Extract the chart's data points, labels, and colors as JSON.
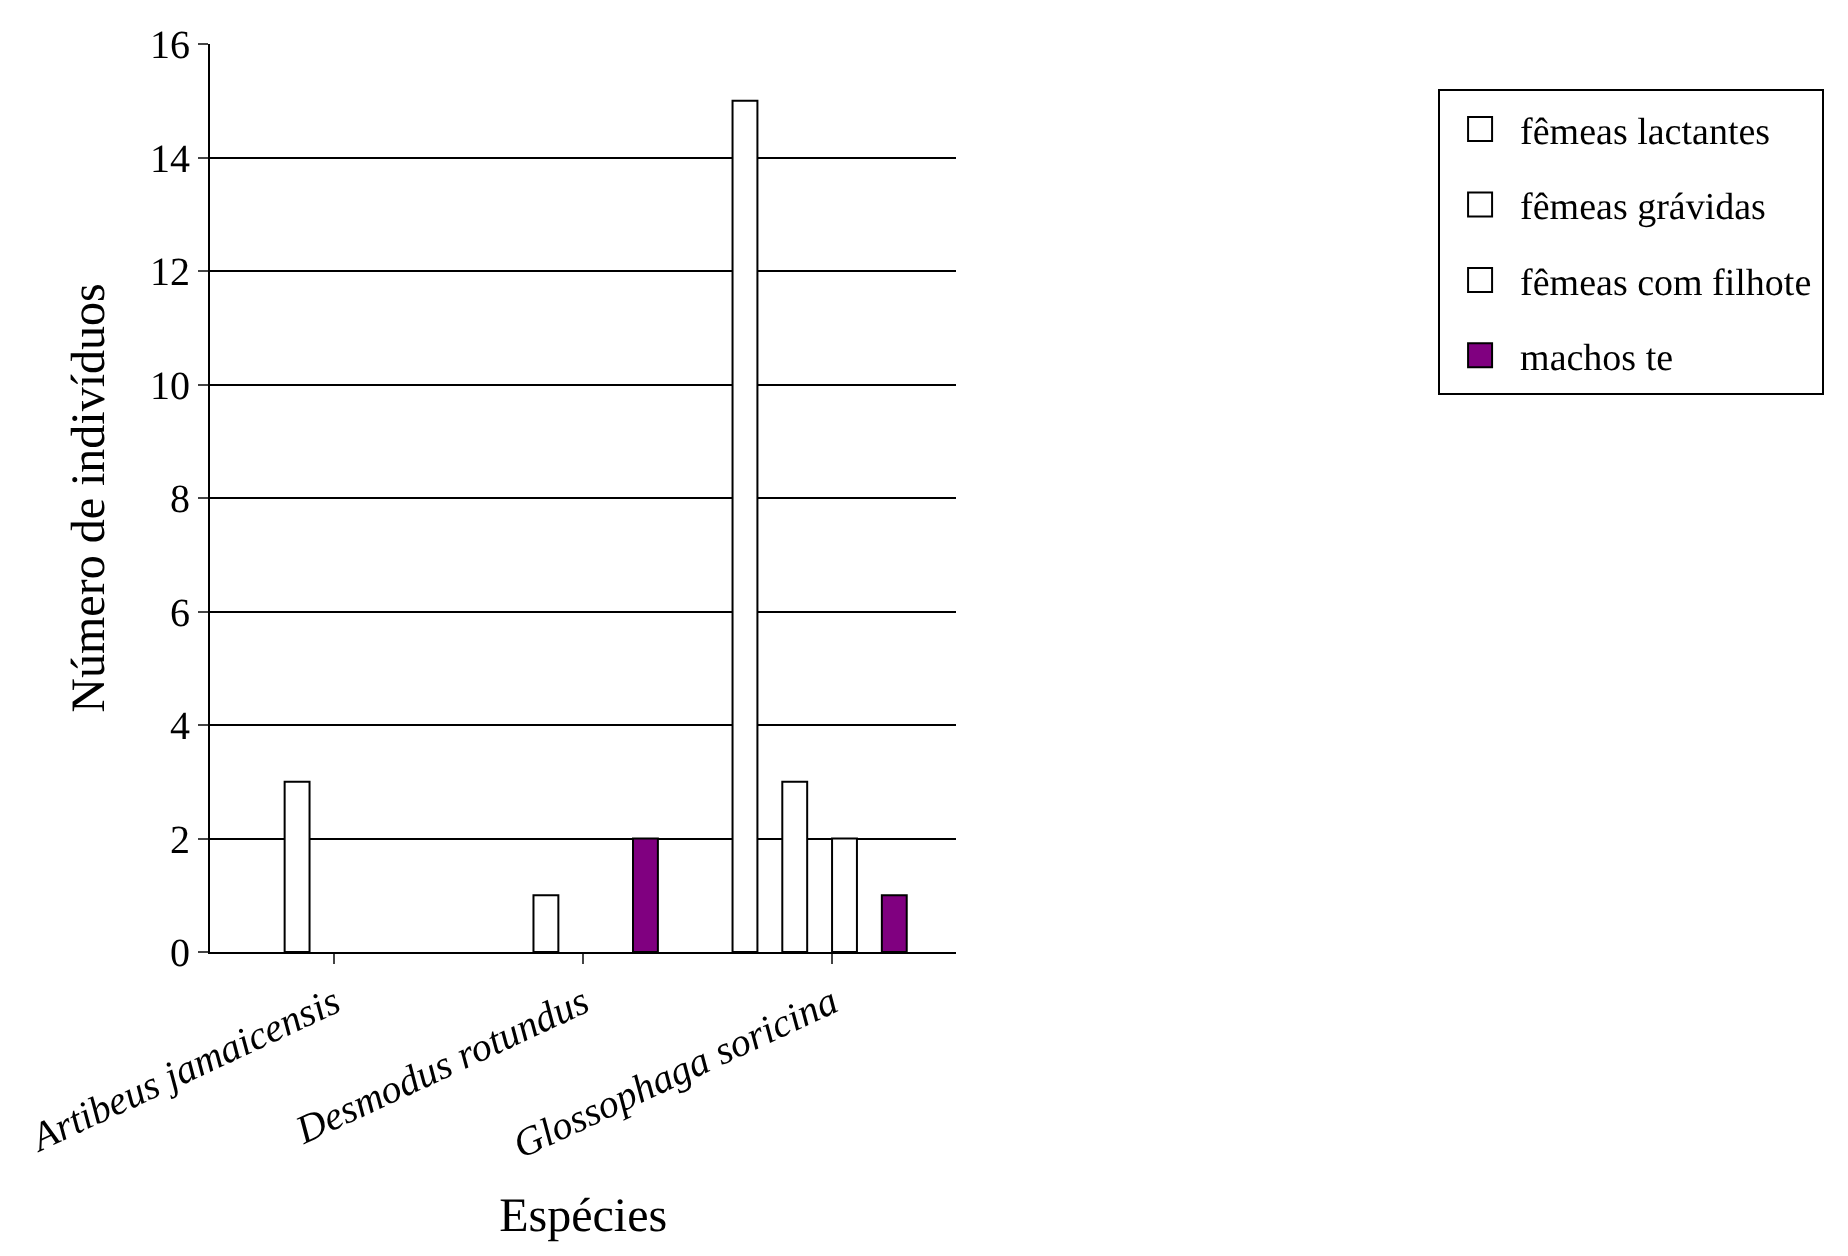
{
  "chart_data": {
    "type": "bar",
    "xlabel": "Espécies",
    "ylabel": "Número de indivíduos",
    "categories": [
      "Artibeus jamaicensis",
      "Desmodus rotundus",
      "Glossophaga soricina"
    ],
    "series": [
      {
        "name": "fêmeas lactantes",
        "color": "#ffffff",
        "values": [
          0,
          0,
          15
        ]
      },
      {
        "name": "fêmeas grávidas",
        "color": "#ffffff",
        "values": [
          3,
          1,
          3
        ]
      },
      {
        "name": "fêmeas com filhote",
        "color": "#ffffff",
        "values": [
          0,
          0,
          2
        ]
      },
      {
        "name": "machos te",
        "color": "#800080",
        "values": [
          0,
          2,
          1
        ]
      }
    ],
    "ylim": [
      0,
      16
    ],
    "yticks": [
      0,
      2,
      4,
      6,
      8,
      10,
      12,
      14,
      16
    ],
    "grid": "y",
    "legend": "right"
  }
}
